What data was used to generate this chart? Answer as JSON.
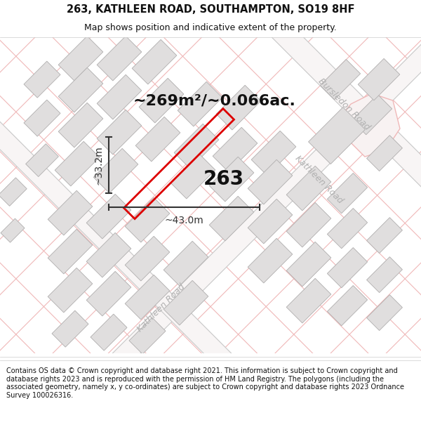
{
  "title": "263, KATHLEEN ROAD, SOUTHAMPTON, SO19 8HF",
  "subtitle": "Map shows position and indicative extent of the property.",
  "footer": "Contains OS data © Crown copyright and database right 2021. This information is subject to Crown copyright and database rights 2023 and is reproduced with the permission of HM Land Registry. The polygons (including the associated geometry, namely x, y co-ordinates) are subject to Crown copyright and database rights 2023 Ordnance Survey 100026316.",
  "area_label": "~269m²/~0.066ac.",
  "width_label": "~43.0m",
  "height_label": "~33.2m",
  "property_number": "263",
  "map_bg": "#ffffff",
  "road_line_color": "#f0b8b8",
  "road_outline_color": "#c8c8c8",
  "building_fill": "#e0dede",
  "building_edge": "#b0aeae",
  "property_edge": "#dd0000",
  "dim_color": "#333333",
  "road_label_color": "#b0b0b0",
  "title_fontsize": 10.5,
  "subtitle_fontsize": 9,
  "footer_fontsize": 7.0,
  "area_fontsize": 16,
  "prop_fontsize": 20,
  "dim_fontsize": 10
}
